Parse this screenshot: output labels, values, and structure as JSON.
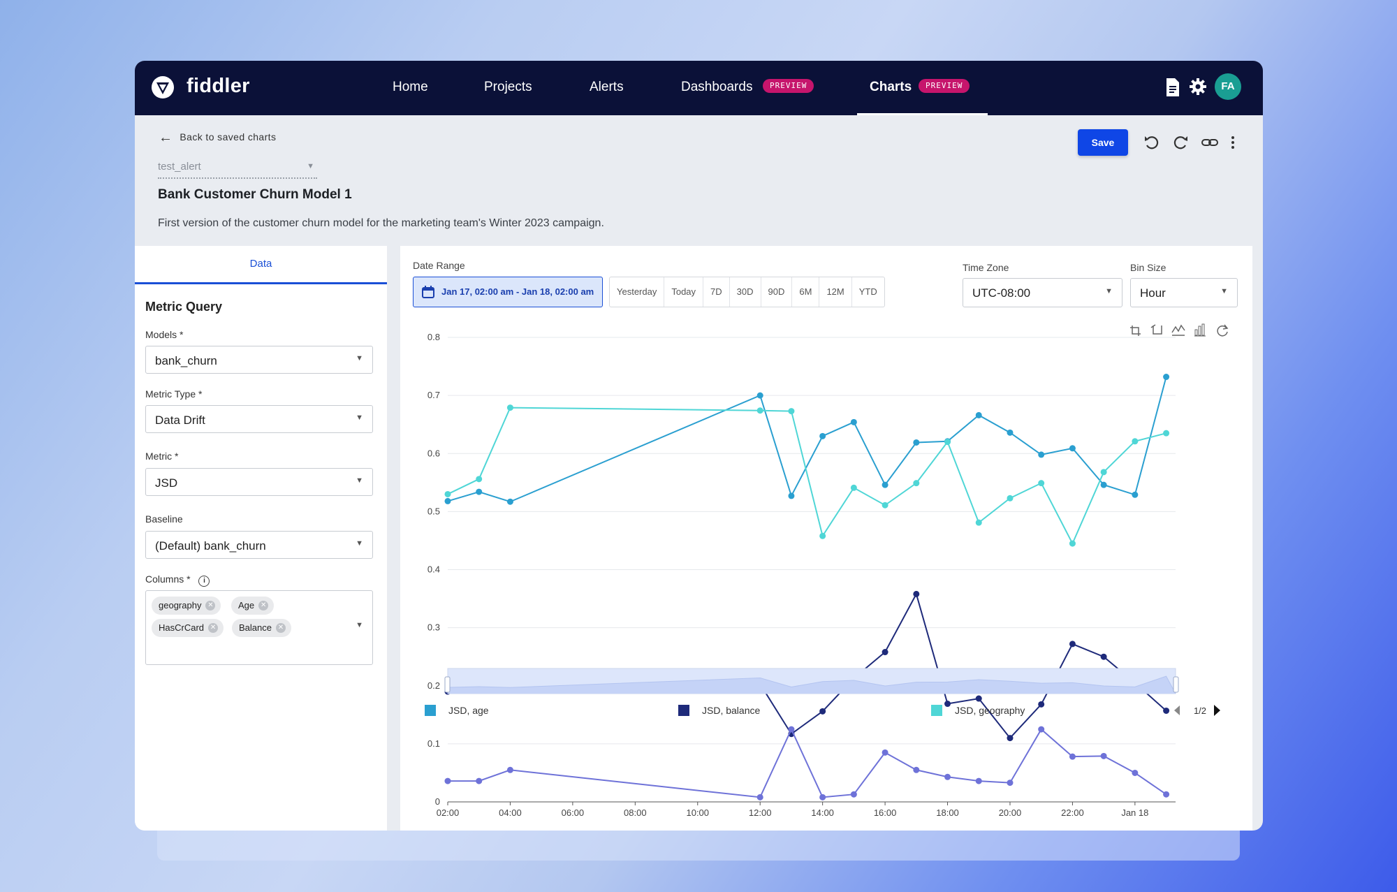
{
  "nav": {
    "brand": "fiddler",
    "items": [
      {
        "label": "Home"
      },
      {
        "label": "Projects"
      },
      {
        "label": "Alerts"
      },
      {
        "label": "Dashboards",
        "badge": "PREVIEW"
      },
      {
        "label": "Charts",
        "badge": "PREVIEW",
        "active": true
      }
    ],
    "avatar_initials": "FA",
    "icons": [
      "document-icon",
      "gear-icon"
    ]
  },
  "header": {
    "back_label": "Back to saved charts",
    "alert_select_value": "test_alert",
    "title": "Bank Customer Churn Model 1",
    "description": "First version of the customer churn model for the marketing team's Winter 2023 campaign.",
    "save_label": "Save",
    "toolbar_icons": [
      "undo-icon",
      "redo-icon",
      "link-icon",
      "more-vert-icon"
    ]
  },
  "left_panel": {
    "tab_label": "Data",
    "section_title": "Metric Query",
    "models_label": "Models *",
    "models_value": "bank_churn",
    "metric_type_label": "Metric Type *",
    "metric_type_value": "Data Drift",
    "metric_label": "Metric *",
    "metric_value": "JSD",
    "baseline_label": "Baseline",
    "baseline_value": "(Default) bank_churn",
    "columns_label": "Columns *",
    "columns": [
      "geography",
      "Age",
      "HasCrCard",
      "Balance"
    ]
  },
  "controls": {
    "date_range_label": "Date Range",
    "date_range_value": "Jan 17, 02:00 am - Jan 18, 02:00 am",
    "presets": [
      "Yesterday",
      "Today",
      "7D",
      "30D",
      "90D",
      "6M",
      "12M",
      "YTD"
    ],
    "time_zone_label": "Time Zone",
    "time_zone_value": "UTC-08:00",
    "bin_size_label": "Bin Size",
    "bin_size_value": "Hour"
  },
  "chart_data": {
    "type": "line",
    "x_hours": [
      2,
      3,
      4,
      12,
      13,
      14,
      15,
      16,
      17,
      18,
      19,
      20,
      21,
      22,
      23,
      24,
      25
    ],
    "x_tick_labels": [
      "02:00",
      "04:00",
      "06:00",
      "08:00",
      "10:00",
      "12:00",
      "14:00",
      "16:00",
      "18:00",
      "20:00",
      "22:00",
      "Jan 18"
    ],
    "y_tick_labels": [
      "0",
      "0.1",
      "0.2",
      "0.3",
      "0.4",
      "0.5",
      "0.6",
      "0.7",
      "0.8"
    ],
    "ylim": [
      0,
      0.8
    ],
    "grid": true,
    "series": [
      {
        "name": "JSD, age",
        "color": "#2a9fd0",
        "values": [
          0.518,
          0.534,
          0.517,
          0.7,
          0.527,
          0.63,
          0.654,
          0.546,
          0.619,
          0.621,
          0.666,
          0.636,
          0.598,
          0.609,
          0.546,
          0.529,
          0.732
        ]
      },
      {
        "name": "JSD, balance",
        "color": "#1e2a7a",
        "values": [
          0.19,
          0.213,
          0.21,
          0.203,
          0.117,
          0.156,
          0.213,
          0.258,
          0.358,
          0.169,
          0.178,
          0.11,
          0.168,
          0.272,
          0.25,
          0.205,
          0.157
        ]
      },
      {
        "name": "JSD, geography",
        "color": "#4fd6d6",
        "values": [
          0.53,
          0.556,
          0.679,
          0.674,
          0.673,
          0.458,
          0.541,
          0.511,
          0.549,
          0.62,
          0.481,
          0.523,
          0.549,
          0.445,
          0.568,
          0.621,
          0.635
        ]
      },
      {
        "name": "",
        "color": "#6e72d8",
        "values": [
          0.036,
          0.036,
          0.055,
          0.008,
          0.125,
          0.008,
          0.013,
          0.085,
          0.055,
          0.043,
          0.036,
          0.033,
          0.125,
          0.078,
          0.079,
          0.05,
          0.013
        ]
      }
    ],
    "legend_page": "1/2",
    "toolbox_icons": [
      "zoom-icon",
      "zoom-reset-icon",
      "line-icon",
      "bar-icon",
      "restore-icon"
    ]
  }
}
